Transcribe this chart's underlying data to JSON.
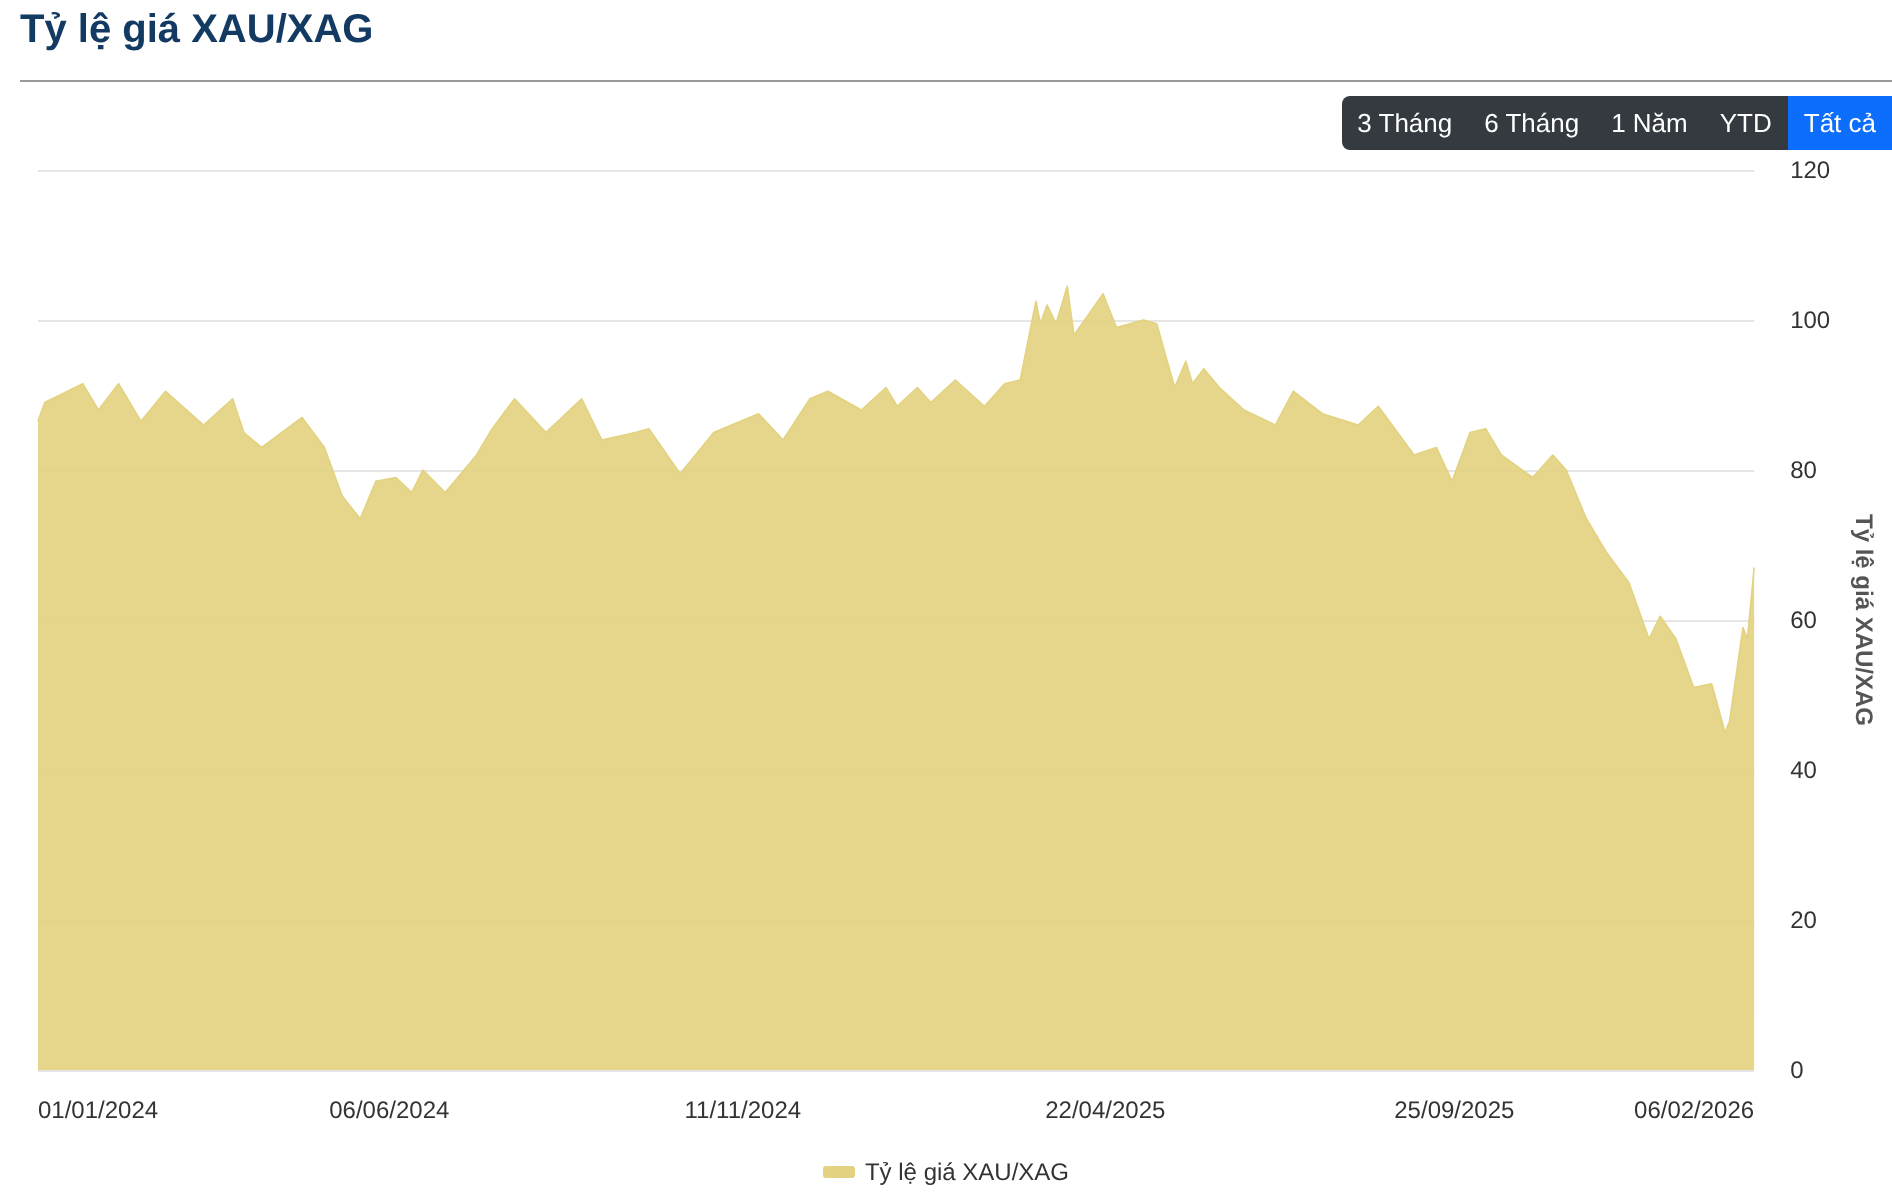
{
  "chart_data": {
    "type": "area",
    "title": "Tỷ lệ giá XAU/XAG",
    "ylabel": "Tỷ lệ giá XAU/XAG",
    "annotations": [
      "3 Tháng",
      "6 Tháng",
      "1 Năm",
      "YTD",
      "Tất cả"
    ],
    "x": [
      "2024-01-01",
      "2024-01-04",
      "2024-01-21",
      "2024-01-28",
      "2024-02-06",
      "2024-02-16",
      "2024-02-27",
      "2024-03-15",
      "2024-03-28",
      "2024-04-02",
      "2024-04-10",
      "2024-04-28",
      "2024-05-08",
      "2024-05-16",
      "2024-05-24",
      "2024-05-31",
      "2024-06-09",
      "2024-06-16",
      "2024-06-21",
      "2024-07-01",
      "2024-07-15",
      "2024-07-22",
      "2024-08-01",
      "2024-08-15",
      "2024-08-31",
      "2024-09-09",
      "2024-09-24",
      "2024-09-30",
      "2024-10-14",
      "2024-10-29",
      "2024-11-18",
      "2024-11-29",
      "2024-12-11",
      "2024-12-19",
      "2025-01-03",
      "2025-01-14",
      "2025-01-19",
      "2025-01-28",
      "2025-02-03",
      "2025-02-14",
      "2025-02-27",
      "2025-03-08",
      "2025-03-15",
      "2025-03-22",
      "2025-03-24",
      "2025-03-27",
      "2025-03-31",
      "2025-04-05",
      "2025-04-08",
      "2025-04-14",
      "2025-04-21",
      "2025-04-27",
      "2025-05-09",
      "2025-05-15",
      "2025-05-23",
      "2025-05-28",
      "2025-05-31",
      "2025-06-05",
      "2025-06-12",
      "2025-06-23",
      "2025-07-07",
      "2025-07-15",
      "2025-07-28",
      "2025-08-13",
      "2025-08-22",
      "2025-09-07",
      "2025-09-17",
      "2025-09-24",
      "2025-10-02",
      "2025-10-09",
      "2025-10-16",
      "2025-10-30",
      "2025-11-08",
      "2025-11-14",
      "2025-11-23",
      "2025-12-02",
      "2025-12-12",
      "2025-12-21",
      "2025-12-26",
      "2026-01-02",
      "2026-01-10",
      "2026-01-18",
      "2026-01-24",
      "2026-01-26",
      "2026-02-01",
      "2026-02-03",
      "2026-02-06"
    ],
    "series": [
      {
        "name": "Tỷ lệ giá XAU/XAG",
        "color": "#e3d27f",
        "values": [
          86.5,
          89,
          91.5,
          88,
          91.5,
          86.5,
          90.5,
          86,
          89.5,
          85,
          83,
          87,
          83,
          76.5,
          73.5,
          78.5,
          79,
          77,
          80,
          77,
          82,
          85.5,
          89.5,
          85,
          89.5,
          84,
          85,
          85.5,
          79.5,
          85,
          87.5,
          84,
          89.5,
          90.5,
          88,
          91,
          88.5,
          91,
          89,
          92,
          88.5,
          91.5,
          92,
          102.5,
          99.5,
          102,
          99.5,
          104.5,
          98,
          100.5,
          103.5,
          99,
          100,
          99.5,
          91,
          94.5,
          91.5,
          93.5,
          91,
          88,
          86,
          90.5,
          87.5,
          86,
          88.5,
          82,
          83,
          78.5,
          85,
          85.5,
          82,
          79,
          82,
          80,
          73.5,
          69,
          65,
          57.5,
          60.5,
          57.5,
          51,
          51.5,
          45,
          46.5,
          59,
          57.5,
          67
        ]
      }
    ],
    "xlim": [
      "2024-01-01",
      "2026-02-06"
    ],
    "xticks": [
      {
        "value": "2024-01-01",
        "label": "01/01/2024"
      },
      {
        "value": "2024-06-06",
        "label": "06/06/2024"
      },
      {
        "value": "2024-11-11",
        "label": "11/11/2024"
      },
      {
        "value": "2025-04-22",
        "label": "22/04/2025"
      },
      {
        "value": "2025-09-25",
        "label": "25/09/2025"
      },
      {
        "value": "2026-02-06",
        "label": "06/02/2026"
      }
    ],
    "ylim": [
      0,
      120
    ],
    "yticks": [
      0,
      20,
      40,
      60,
      80,
      100,
      120
    ],
    "grid": "y",
    "legend": "bottom"
  }
}
